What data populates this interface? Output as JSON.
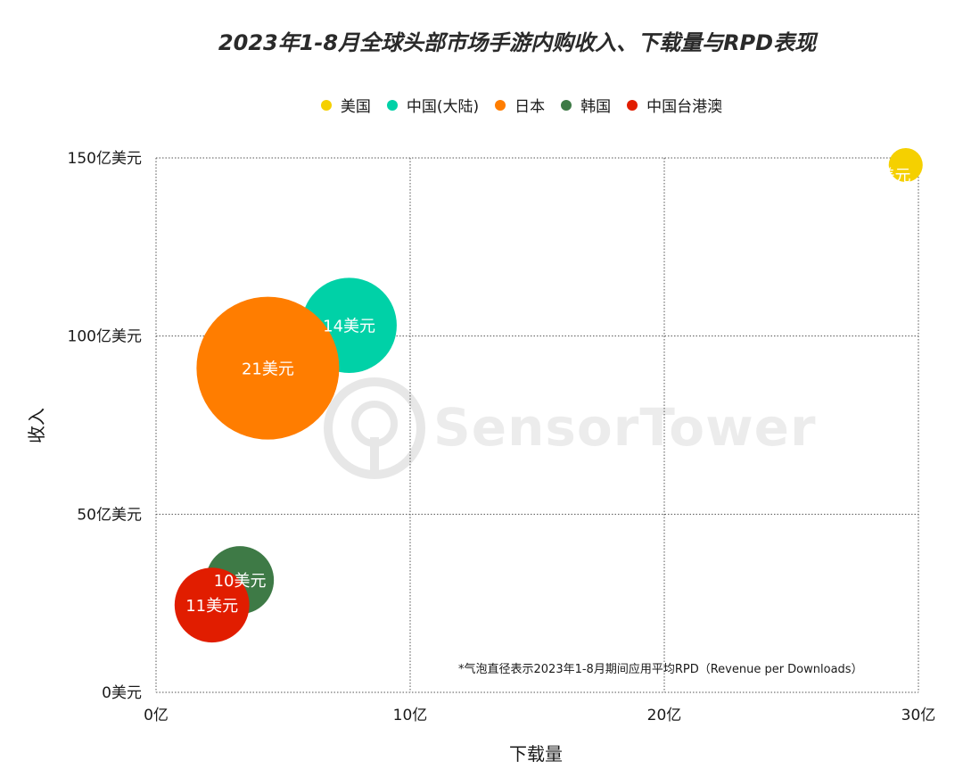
{
  "chart_data": {
    "type": "bubble",
    "title": "2023年1-8月全球头部市场手游内购收入、下载量与RPD表现",
    "xlabel": "下载量",
    "ylabel": "收入",
    "xlim": [
      0,
      30
    ],
    "ylim": [
      0,
      150
    ],
    "x_ticks": [
      "0亿",
      "10亿",
      "20亿",
      "30亿"
    ],
    "y_ticks": [
      "0美元",
      "50亿美元",
      "100亿美元",
      "150亿美元"
    ],
    "grid": true,
    "legend_position": "top-center",
    "series": [
      {
        "name": "美国",
        "color": "#f5d000",
        "x": 29.5,
        "y": 148,
        "size": 5,
        "label": "5美元"
      },
      {
        "name": "中国(大陆)",
        "color": "#00d1a7",
        "x": 7.6,
        "y": 103,
        "size": 14,
        "label": "14美元"
      },
      {
        "name": "日本",
        "color": "#ff7d00",
        "x": 4.4,
        "y": 91,
        "size": 21,
        "label": "21美元"
      },
      {
        "name": "韩国",
        "color": "#3e7a46",
        "x": 3.3,
        "y": 31.5,
        "size": 10,
        "label": "10美元"
      },
      {
        "name": "中国台港澳",
        "color": "#e11d00",
        "x": 2.2,
        "y": 24.5,
        "size": 11,
        "label": "11美元"
      }
    ],
    "footnote": "*气泡直径表示2023年1-8月期间应用平均RPD（Revenue per Downloads）"
  },
  "watermark": "SensorTower"
}
